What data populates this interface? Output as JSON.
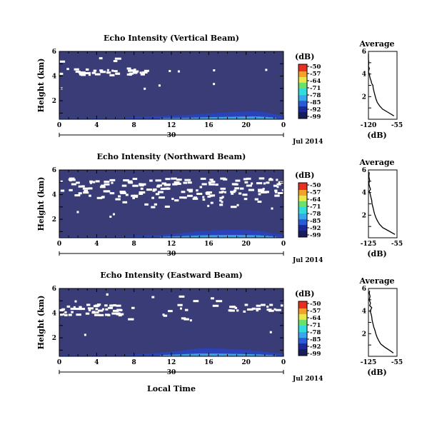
{
  "chart_data": {
    "type": "heatmap",
    "x_label": "Local Time",
    "date_label": "Jul 2014",
    "day_label": "30",
    "x_ticks": [
      "0",
      "4",
      "8",
      "12",
      "16",
      "20",
      "0"
    ],
    "y_label": "Height (km)",
    "y_ticks": [
      "2",
      "4",
      "6"
    ],
    "colorbar": {
      "unit": "(dB)",
      "ticks": [
        "-50",
        "-57",
        "-64",
        "-71",
        "-78",
        "-85",
        "-92",
        "-99"
      ],
      "colors": [
        "#181c5a",
        "#1d2a98",
        "#2a5cd8",
        "#3aa6ee",
        "#33dcdc",
        "#6ce06c",
        "#e8e84a",
        "#f5a02a",
        "#e83020"
      ]
    },
    "panels": [
      {
        "title": "Echo Intensity (Vertical Beam)",
        "avg_title": "Average",
        "avg_xlabel": "(dB)",
        "avg_x_ticks": [
          "-120",
          "-55"
        ],
        "avg_y_ticks": [
          "2",
          "4",
          "6"
        ],
        "profile": [
          [
            0.3,
            -62
          ],
          [
            0.6,
            -75
          ],
          [
            0.9,
            -88
          ],
          [
            1.2,
            -95
          ],
          [
            1.5,
            -100
          ],
          [
            1.8,
            -103
          ],
          [
            2.1,
            -105
          ],
          [
            2.4,
            -107
          ],
          [
            2.7,
            -109
          ],
          [
            3.0,
            -110
          ],
          [
            3.2,
            -113
          ],
          [
            3.4,
            -114
          ],
          [
            3.6,
            -116
          ],
          [
            3.8,
            -117
          ],
          [
            4.0,
            -118
          ],
          [
            4.2,
            -120
          ],
          [
            4.5,
            -118
          ],
          [
            4.7,
            -121
          ],
          [
            5.0,
            -119
          ],
          [
            5.3,
            -121
          ],
          [
            5.6,
            -120
          ],
          [
            5.8,
            -121
          ]
        ]
      },
      {
        "title": "Echo Intensity (Northward Beam)",
        "avg_title": "Average",
        "avg_xlabel": "(dB)",
        "avg_x_ticks": [
          "-125",
          "-55"
        ],
        "avg_y_ticks": [
          "2",
          "4",
          "6"
        ],
        "profile": [
          [
            0.3,
            -60
          ],
          [
            0.6,
            -75
          ],
          [
            0.9,
            -90
          ],
          [
            1.2,
            -98
          ],
          [
            1.5,
            -103
          ],
          [
            1.8,
            -107
          ],
          [
            2.1,
            -110
          ],
          [
            2.4,
            -112
          ],
          [
            2.7,
            -114
          ],
          [
            3.0,
            -116
          ],
          [
            3.3,
            -117
          ],
          [
            3.6,
            -119
          ],
          [
            3.9,
            -121
          ],
          [
            4.1,
            -123
          ],
          [
            4.3,
            -120
          ],
          [
            4.5,
            -122
          ],
          [
            4.8,
            -124
          ],
          [
            5.1,
            -122
          ],
          [
            5.4,
            -124
          ],
          [
            5.8,
            -123
          ]
        ]
      },
      {
        "title": "Echo Intensity (Eastward Beam)",
        "avg_title": "Average",
        "avg_xlabel": "(dB)",
        "avg_x_ticks": [
          "-125",
          "-55"
        ],
        "avg_y_ticks": [
          "2",
          "4",
          "6"
        ],
        "profile": [
          [
            0.3,
            -64
          ],
          [
            0.5,
            -72
          ],
          [
            0.8,
            -85
          ],
          [
            1.1,
            -95
          ],
          [
            1.4,
            -100
          ],
          [
            1.7,
            -104
          ],
          [
            2.0,
            -107
          ],
          [
            2.3,
            -109
          ],
          [
            2.6,
            -112
          ],
          [
            2.9,
            -114
          ],
          [
            3.2,
            -116
          ],
          [
            3.5,
            -117
          ],
          [
            3.8,
            -119
          ],
          [
            4.0,
            -121
          ],
          [
            4.3,
            -117
          ],
          [
            4.5,
            -122
          ],
          [
            4.7,
            -120
          ],
          [
            5.0,
            -123
          ],
          [
            5.3,
            -121
          ],
          [
            5.6,
            -123
          ],
          [
            5.8,
            -122
          ]
        ]
      }
    ]
  }
}
